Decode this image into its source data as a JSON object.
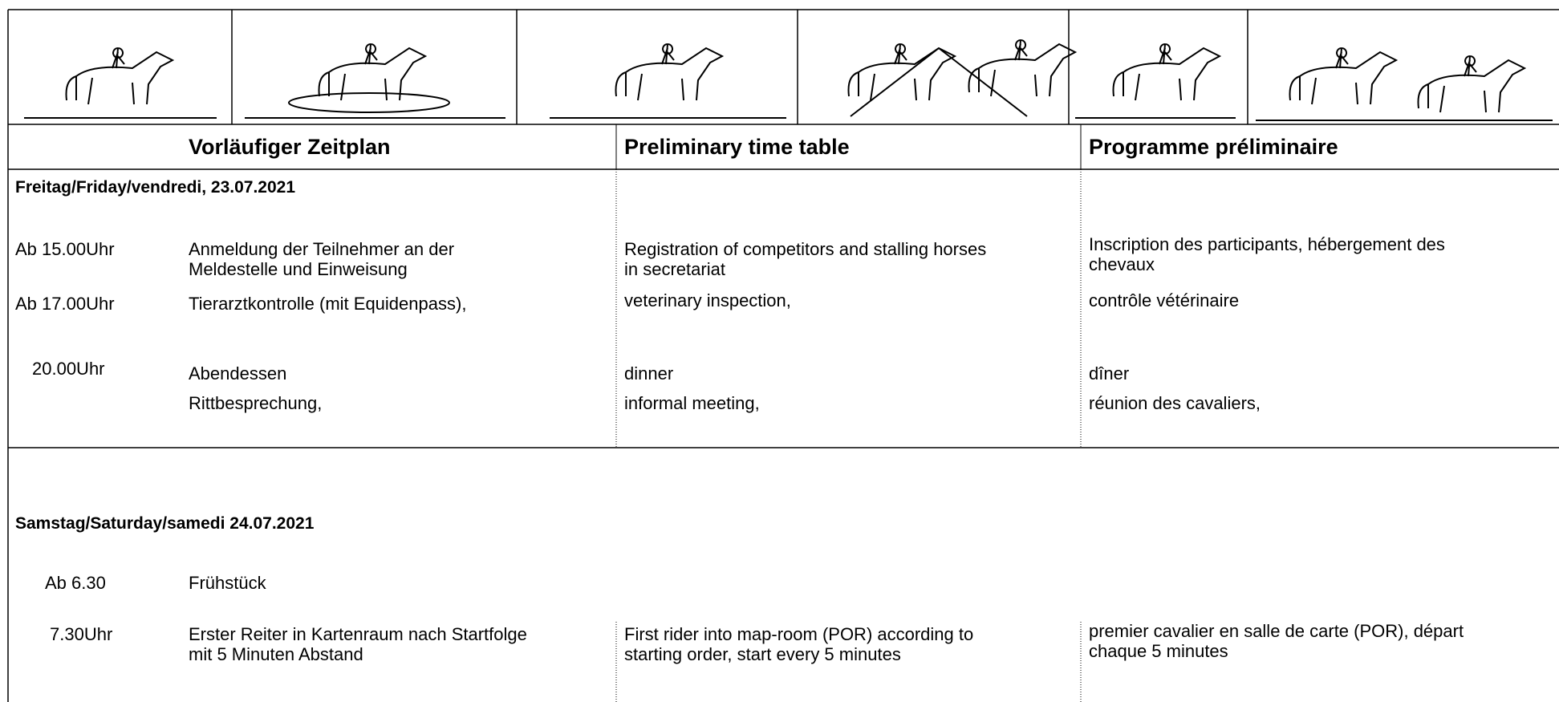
{
  "header": {
    "columns": [
      "Vorläufiger Zeitplan",
      "Preliminary time table",
      "Programme préliminaire"
    ]
  },
  "sections": [
    {
      "day": "Freitag/Friday/vendredi, 23.07.2021",
      "rows": [
        {
          "time": "Ab 15.00Uhr",
          "de": [
            "Anmeldung der Teilnehmer an der",
            "Meldestelle und Einweisung"
          ],
          "en": [
            "Registration of competitors and stalling horses",
            "in secretariat"
          ],
          "fr": [
            "Inscription des participants, hébergement des",
            "chevaux"
          ]
        },
        {
          "time": "Ab 17.00Uhr",
          "de": [
            "Tierarztkontrolle (mit Equidenpass),"
          ],
          "en": [
            "veterinary inspection,"
          ],
          "fr": [
            "contrôle vétérinaire"
          ]
        },
        {
          "time": "20.00Uhr",
          "de": [
            "Abendessen",
            "Rittbesprechung,"
          ],
          "en": [
            "dinner",
            "informal meeting,"
          ],
          "fr": [
            "dîner",
            "réunion des cavaliers,"
          ]
        }
      ]
    },
    {
      "day": "Samstag/Saturday/samedi 24.07.2021",
      "rows": [
        {
          "time": "Ab 6.30",
          "de": [
            "Frühstück"
          ]
        },
        {
          "time": "7.30Uhr",
          "de": [
            "Erster Reiter in Kartenraum nach Startfolge",
            "mit 5 Minuten Abstand"
          ],
          "en": [
            "First rider into map-room (POR) according to",
            "starting order, start every 5 minutes"
          ],
          "fr": [
            "premier cavalier en salle de carte (POR), départ",
            "chaque 5 minutes"
          ]
        }
      ]
    }
  ]
}
